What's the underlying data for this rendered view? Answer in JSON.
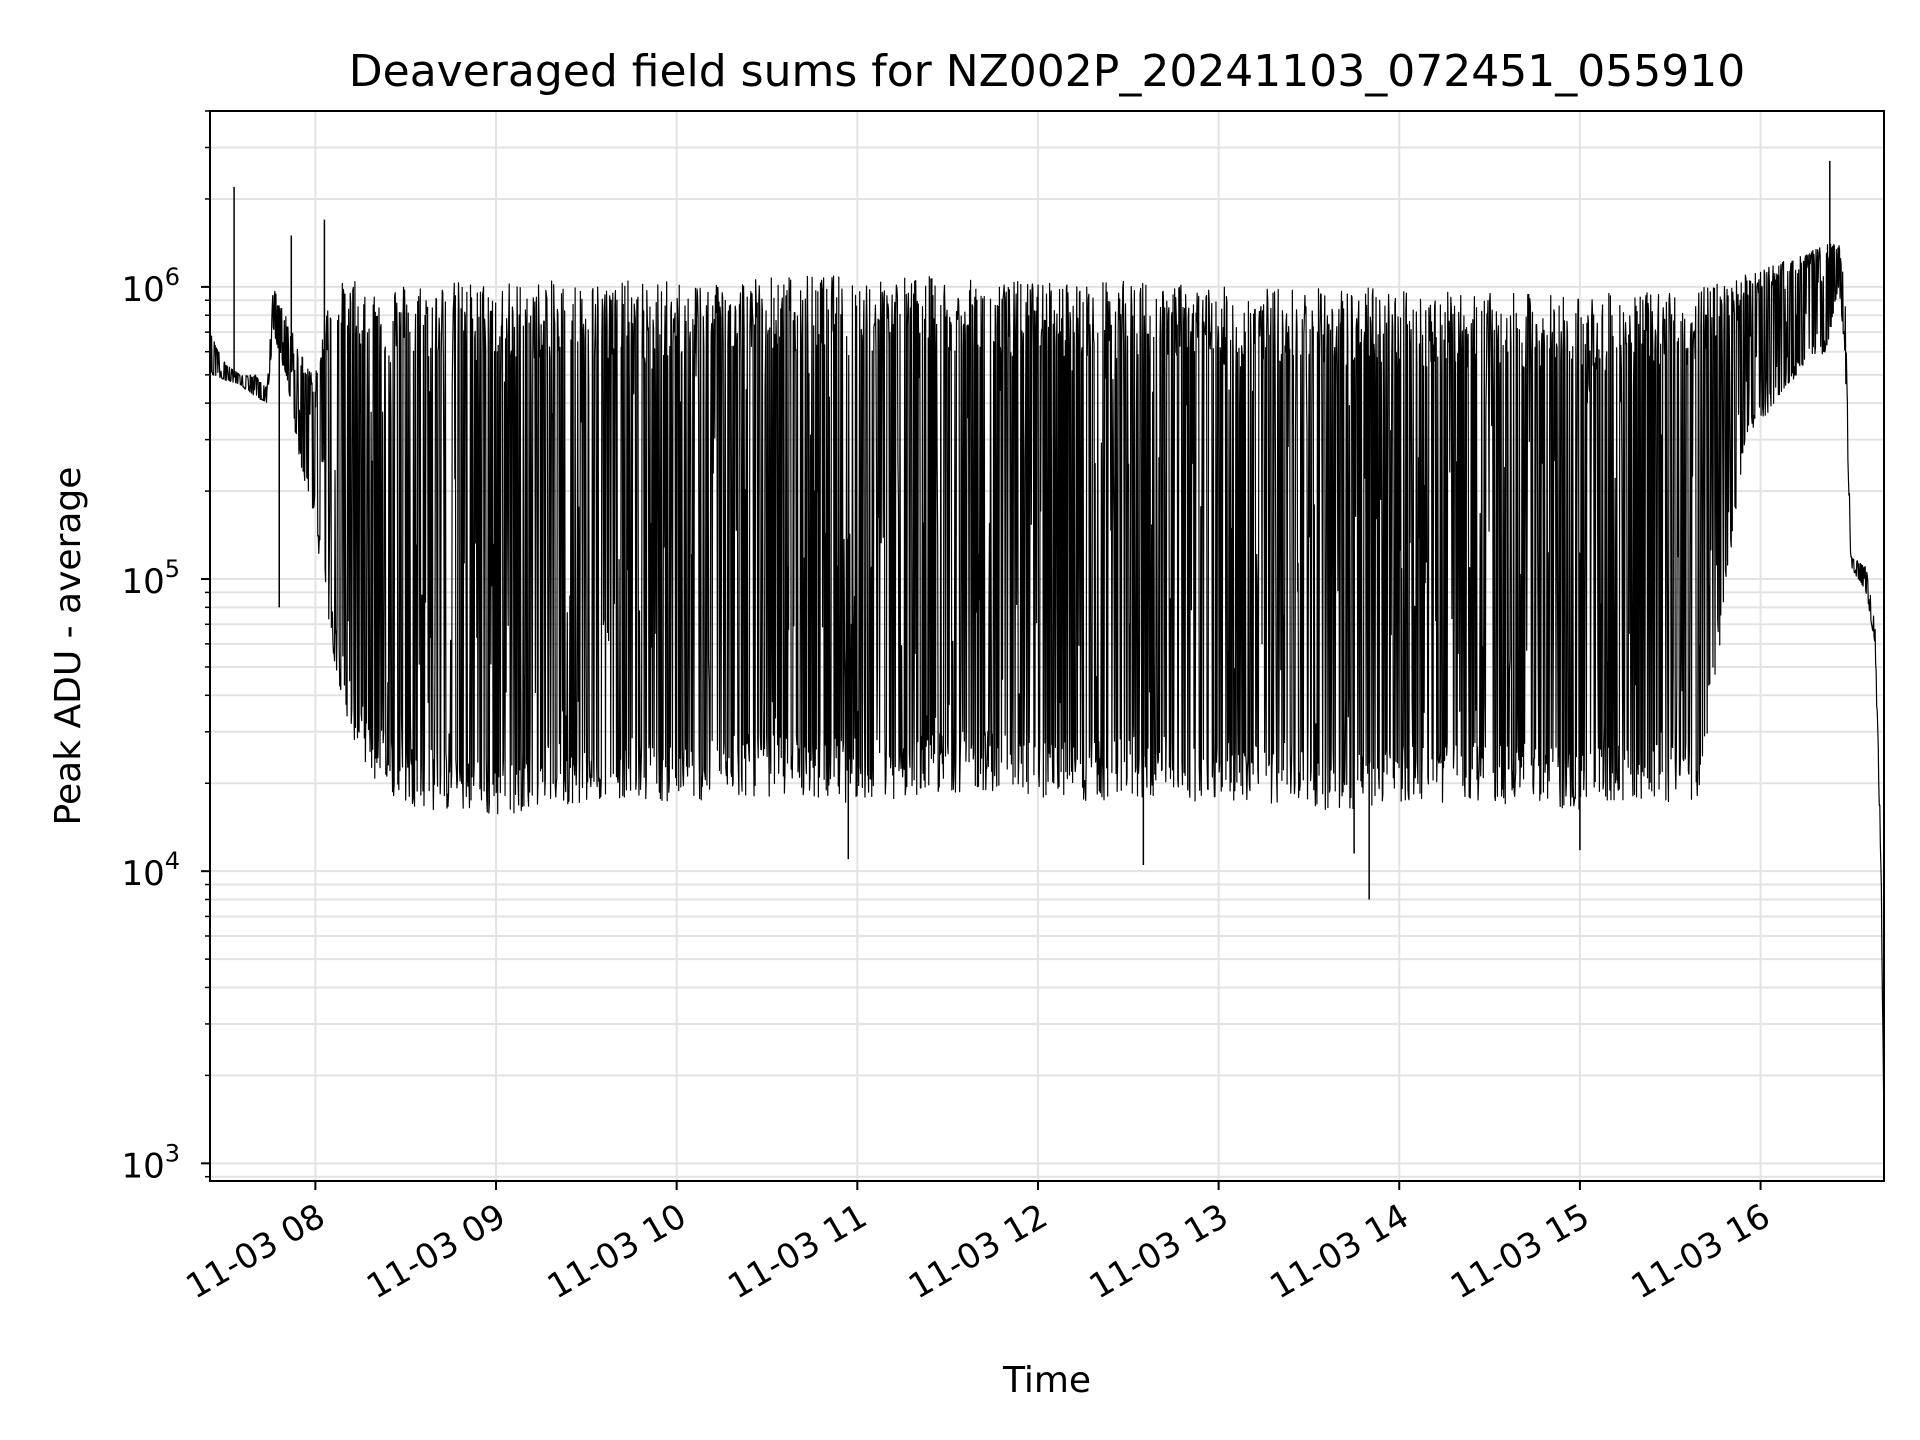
{
  "chart_data": {
    "type": "line",
    "title": "Deaveraged field sums for NZ002P_20241103_072451_055910",
    "xlabel": "Time",
    "ylabel": "Peak ADU - average",
    "yscale": "log",
    "ylim": [
      870,
      4000000
    ],
    "xlim": [
      "2024-11-03 07:25",
      "2024-11-03 16:41"
    ],
    "grid": true,
    "color": "#000000",
    "x_ticks": [
      {
        "t": "2024-11-03 08:00",
        "label": "11-03 08"
      },
      {
        "t": "2024-11-03 09:00",
        "label": "11-03 09"
      },
      {
        "t": "2024-11-03 10:00",
        "label": "11-03 10"
      },
      {
        "t": "2024-11-03 11:00",
        "label": "11-03 11"
      },
      {
        "t": "2024-11-03 12:00",
        "label": "11-03 12"
      },
      {
        "t": "2024-11-03 13:00",
        "label": "11-03 13"
      },
      {
        "t": "2024-11-03 14:00",
        "label": "11-03 14"
      },
      {
        "t": "2024-11-03 15:00",
        "label": "11-03 15"
      },
      {
        "t": "2024-11-03 16:00",
        "label": "11-03 16"
      }
    ],
    "y_ticks": [
      {
        "v": 1000,
        "base": "10",
        "exp": "3"
      },
      {
        "v": 10000,
        "base": "10",
        "exp": "4"
      },
      {
        "v": 100000,
        "base": "10",
        "exp": "5"
      },
      {
        "v": 1000000,
        "base": "10",
        "exp": "6"
      }
    ],
    "series": [
      {
        "x": [
          "2024-11-03 07:25",
          "2024-11-03 07:30",
          "2024-11-03 07:35",
          "2024-11-03 07:40",
          "2024-11-03 07:44",
          "2024-11-03 07:46",
          "2024-11-03 07:50",
          "2024-11-03 07:55",
          "2024-11-03 08:00",
          "2024-11-03 08:05",
          "2024-11-03 08:10",
          "2024-11-03 08:15",
          "2024-11-03 08:20",
          "2024-11-03 08:25",
          "2024-11-03 08:30",
          "2024-11-03 08:40",
          "2024-11-03 08:50",
          "2024-11-03 09:00",
          "2024-11-03 09:15",
          "2024-11-03 09:30",
          "2024-11-03 09:45",
          "2024-11-03 10:00",
          "2024-11-03 10:20",
          "2024-11-03 10:40",
          "2024-11-03 11:00",
          "2024-11-03 11:20",
          "2024-11-03 11:40",
          "2024-11-03 12:00",
          "2024-11-03 12:20",
          "2024-11-03 12:40",
          "2024-11-03 13:00",
          "2024-11-03 13:20",
          "2024-11-03 13:40",
          "2024-11-03 14:00",
          "2024-11-03 14:20",
          "2024-11-03 14:40",
          "2024-11-03 15:00",
          "2024-11-03 15:20",
          "2024-11-03 15:40",
          "2024-11-03 15:55",
          "2024-11-03 16:05",
          "2024-11-03 16:15",
          "2024-11-03 16:22",
          "2024-11-03 16:26",
          "2024-11-03 16:28",
          "2024-11-03 16:30",
          "2024-11-03 16:35",
          "2024-11-03 16:38",
          "2024-11-03 16:40",
          "2024-11-03 16:41"
        ],
        "lower": [
          500000,
          480000,
          460000,
          420000,
          400000,
          700000,
          500000,
          250000,
          150000,
          60000,
          35000,
          24000,
          20000,
          18000,
          17000,
          16000,
          16000,
          15000,
          17000,
          17000,
          18000,
          17000,
          18000,
          18000,
          17000,
          18000,
          19000,
          18000,
          17000,
          18000,
          17000,
          17000,
          16000,
          17000,
          17000,
          17000,
          16000,
          17000,
          17000,
          300000,
          400000,
          550000,
          600000,
          1000000,
          600000,
          110000,
          90000,
          60000,
          10000,
          1200
        ],
        "upper": [
          700000,
          550000,
          500000,
          500000,
          450000,
          1000000,
          800000,
          600000,
          500000,
          1000000,
          1050000,
          1050000,
          1050000,
          1050000,
          1050000,
          1050000,
          1050000,
          1050000,
          1050000,
          1050000,
          1050000,
          1050000,
          1100000,
          1100000,
          1100000,
          1100000,
          1050000,
          1050000,
          1050000,
          1050000,
          1000000,
          1000000,
          1000000,
          1000000,
          950000,
          950000,
          950000,
          950000,
          1000000,
          1100000,
          1200000,
          1300000,
          1400000,
          1400000,
          1000000,
          120000,
          110000,
          70000,
          12000,
          1300
        ],
        "spikes_low": [
          {
            "t": "2024-11-03 07:48",
            "v": 80000
          },
          {
            "t": "2024-11-03 10:57",
            "v": 11000
          },
          {
            "t": "2024-11-03 12:35",
            "v": 10500
          },
          {
            "t": "2024-11-03 13:45",
            "v": 11500
          },
          {
            "t": "2024-11-03 13:50",
            "v": 8000
          },
          {
            "t": "2024-11-03 15:00",
            "v": 11800
          }
        ],
        "spikes_high": [
          {
            "t": "2024-11-03 07:33",
            "v": 2200000
          },
          {
            "t": "2024-11-03 07:52",
            "v": 1500000
          },
          {
            "t": "2024-11-03 08:03",
            "v": 1700000
          },
          {
            "t": "2024-11-03 16:23",
            "v": 2700000
          }
        ]
      }
    ]
  }
}
